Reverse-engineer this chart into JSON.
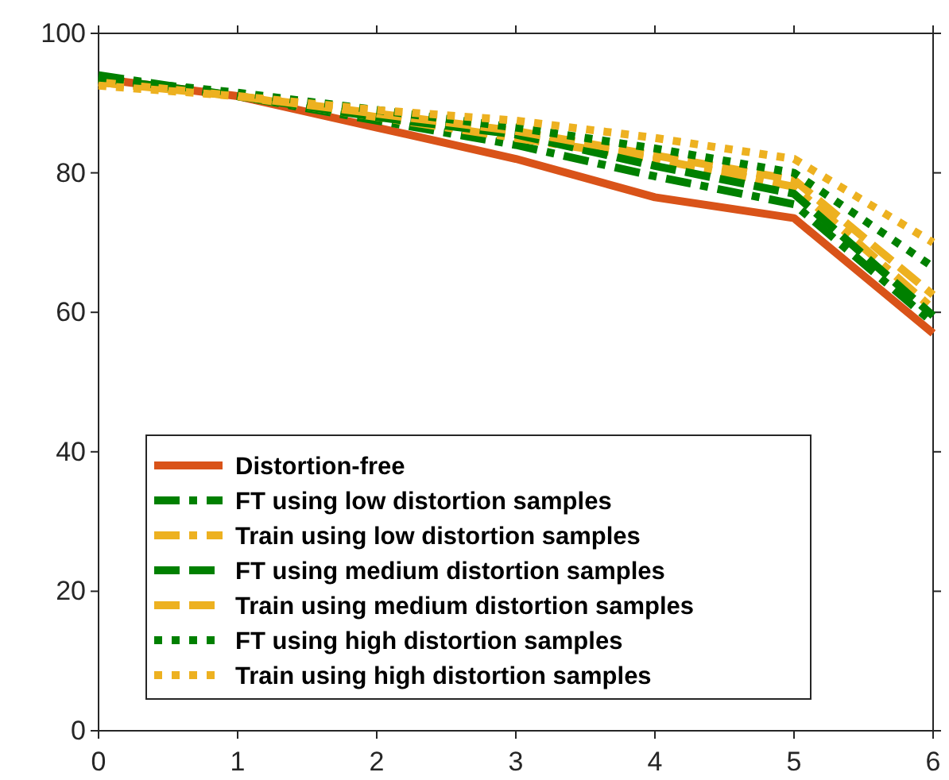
{
  "chart_data": {
    "type": "line",
    "x": [
      0,
      1,
      2,
      3,
      4,
      5,
      6
    ],
    "xlim": [
      0,
      6
    ],
    "xticks": [
      0,
      1,
      2,
      3,
      4,
      5,
      6
    ],
    "ylim": [
      0,
      100
    ],
    "yticks": [
      0,
      20,
      40,
      60,
      80,
      100
    ],
    "grid": false,
    "legend": "bottom",
    "marker": "none",
    "series": [
      {
        "name": "Distortion-free",
        "color": "#d95319",
        "line_style": "solid",
        "values": [
          93.5,
          91,
          86.5,
          82,
          76.5,
          73.5,
          57
        ]
      },
      {
        "name": "FT using low distortion samples",
        "color": "#008000",
        "line_style": "dashdot",
        "values": [
          94,
          91,
          87.5,
          84,
          79.5,
          75.5,
          58.5
        ]
      },
      {
        "name": "Train using low distortion samples",
        "color": "#edb120",
        "line_style": "dashdot",
        "values": [
          93,
          91,
          88,
          85,
          82,
          78,
          60.5
        ]
      },
      {
        "name": "FT using medium distortion samples",
        "color": "#008000",
        "line_style": "dashed",
        "values": [
          93.5,
          91,
          88,
          85.5,
          81,
          77,
          59.5
        ]
      },
      {
        "name": "Train using medium distortion samples",
        "color": "#edb120",
        "line_style": "dashed",
        "values": [
          93,
          91,
          88.5,
          86,
          82.5,
          79,
          62.5
        ]
      },
      {
        "name": "FT using high distortion samples",
        "color": "#008000",
        "line_style": "dotted",
        "values": [
          93.5,
          91.5,
          89,
          86.5,
          83.5,
          80,
          66.5
        ]
      },
      {
        "name": "Train using high distortion samples",
        "color": "#edb120",
        "line_style": "dotted",
        "values": [
          92.5,
          91,
          89,
          87.5,
          85,
          82,
          70
        ]
      }
    ]
  }
}
